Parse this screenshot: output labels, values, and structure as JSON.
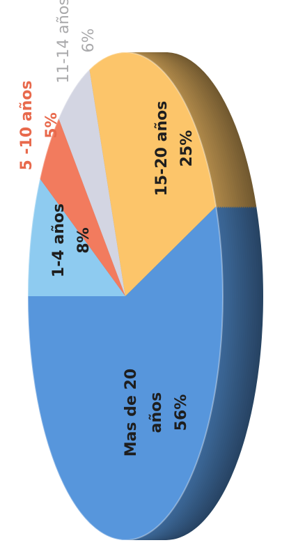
{
  "chart_data": {
    "type": "pie",
    "categories": [
      "1-4 años",
      "5 -10 años",
      "11-14 años",
      "15-20 años",
      "Mas de 20 años"
    ],
    "values": [
      8,
      5,
      6,
      25,
      56
    ],
    "value_labels": [
      "8%",
      "5%",
      "6%",
      "25%",
      "56%"
    ],
    "colors": [
      "#8ecbf0",
      "#f27b5e",
      "#d3d5e2",
      "#fcc56a",
      "#5796dc"
    ],
    "label_colors": [
      "#1e1e1e",
      "#e8694c",
      "#a9a9ab",
      "#1e1e1e",
      "#1e1e1e"
    ]
  }
}
